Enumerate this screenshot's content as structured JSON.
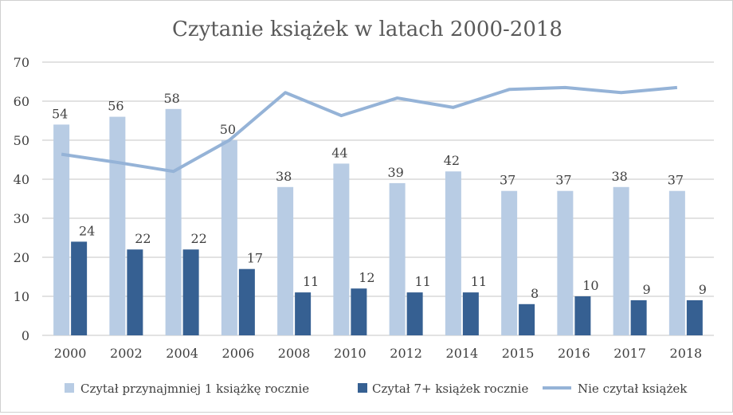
{
  "chart_data": {
    "type": "bar",
    "title": "Czytanie książek w latach 2000-2018",
    "xlabel": "",
    "ylabel": "",
    "ylim": [
      0,
      70
    ],
    "yticks": [
      "0",
      "10",
      "20",
      "30",
      "40",
      "50",
      "60",
      "70"
    ],
    "grid": true,
    "legend_position": "bottom",
    "categories": [
      "2000",
      "2002",
      "2004",
      "2006",
      "2008",
      "2010",
      "2012",
      "2014",
      "2015",
      "2016",
      "2017",
      "2018"
    ],
    "series": [
      {
        "name": "Czytał przynajmniej 1 książkę rocznie",
        "kind": "bar",
        "color": "#b8cce4",
        "values": [
          54,
          56,
          58,
          50,
          38,
          44,
          39,
          42,
          37,
          37,
          38,
          37
        ],
        "labels": [
          "54",
          "56",
          "58",
          "50",
          "38",
          "44",
          "39",
          "42",
          "37",
          "37",
          "38",
          "37"
        ]
      },
      {
        "name": "Czytał 7+ książek rocznie",
        "kind": "bar",
        "color": "#366092",
        "values": [
          24,
          22,
          22,
          17,
          11,
          12,
          11,
          11,
          8,
          10,
          9,
          9
        ],
        "labels": [
          "24",
          "22",
          "22",
          "17",
          "11",
          "12",
          "11",
          "11",
          "8",
          "10",
          "9",
          "9"
        ]
      },
      {
        "name": "Nie czytał książek",
        "kind": "line",
        "color": "#95b3d7",
        "values": [
          46.4,
          44.3,
          42,
          50,
          62.2,
          56.3,
          60.8,
          58.4,
          63,
          63.5,
          62.2,
          63.5
        ]
      }
    ]
  }
}
